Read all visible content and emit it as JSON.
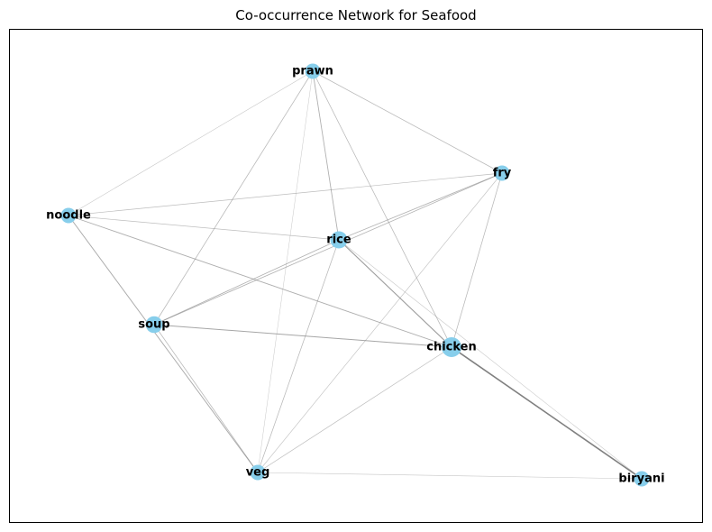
{
  "title": "Co-occurrence Network for Seafood",
  "colors": {
    "node_fill": "#87ceeb",
    "edge": "#808080",
    "frame": "#000000"
  },
  "nodes": [
    {
      "id": "prawn",
      "label": "prawn",
      "weight": 1.0
    },
    {
      "id": "fry",
      "label": "fry",
      "weight": 1.0
    },
    {
      "id": "noodle",
      "label": "noodle",
      "weight": 1.0
    },
    {
      "id": "rice",
      "label": "rice",
      "weight": 1.4
    },
    {
      "id": "soup",
      "label": "soup",
      "weight": 1.3
    },
    {
      "id": "chicken",
      "label": "chicken",
      "weight": 2.0
    },
    {
      "id": "veg",
      "label": "veg",
      "weight": 1.0
    },
    {
      "id": "biryani",
      "label": "biryani",
      "weight": 1.0
    }
  ],
  "edges": [
    {
      "source": "prawn",
      "target": "noodle",
      "weight": 0.3
    },
    {
      "source": "prawn",
      "target": "fry",
      "weight": 0.6
    },
    {
      "source": "prawn",
      "target": "rice",
      "weight": 0.8
    },
    {
      "source": "prawn",
      "target": "soup",
      "weight": 0.6
    },
    {
      "source": "prawn",
      "target": "chicken",
      "weight": 0.6
    },
    {
      "source": "prawn",
      "target": "veg",
      "weight": 0.2
    },
    {
      "source": "fry",
      "target": "noodle",
      "weight": 0.5
    },
    {
      "source": "fry",
      "target": "rice",
      "weight": 0.7
    },
    {
      "source": "fry",
      "target": "soup",
      "weight": 0.7
    },
    {
      "source": "fry",
      "target": "chicken",
      "weight": 0.6
    },
    {
      "source": "fry",
      "target": "veg",
      "weight": 0.4
    },
    {
      "source": "noodle",
      "target": "rice",
      "weight": 0.5
    },
    {
      "source": "noodle",
      "target": "chicken",
      "weight": 0.8
    },
    {
      "source": "noodle",
      "target": "veg",
      "weight": 0.9
    },
    {
      "source": "rice",
      "target": "soup",
      "weight": 0.8
    },
    {
      "source": "rice",
      "target": "chicken",
      "weight": 1.2
    },
    {
      "source": "rice",
      "target": "veg",
      "weight": 0.6
    },
    {
      "source": "rice",
      "target": "biryani",
      "weight": 0.3
    },
    {
      "source": "soup",
      "target": "chicken",
      "weight": 1.0
    },
    {
      "source": "soup",
      "target": "veg",
      "weight": 0.6
    },
    {
      "source": "chicken",
      "target": "veg",
      "weight": 0.5
    },
    {
      "source": "chicken",
      "target": "biryani",
      "weight": 2.0
    },
    {
      "source": "veg",
      "target": "biryani",
      "weight": 0.3
    }
  ]
}
